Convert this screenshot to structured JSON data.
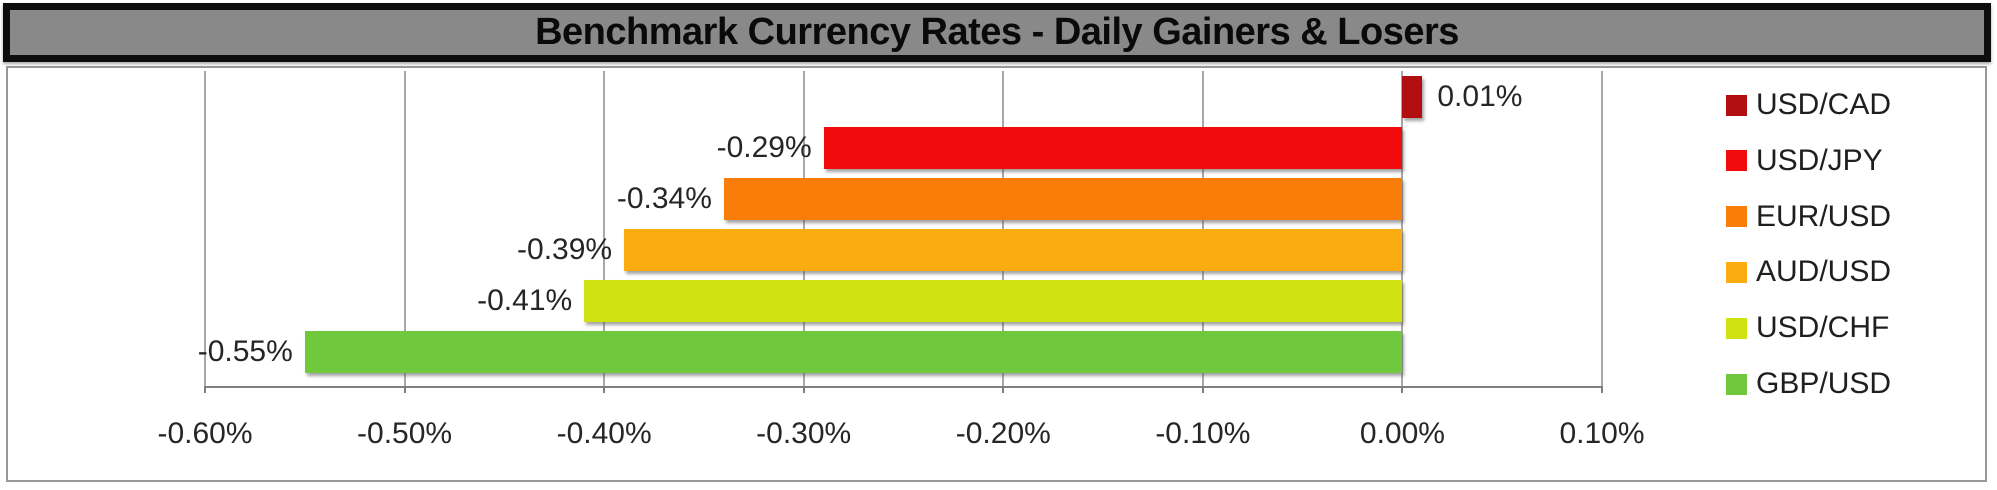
{
  "title": "Benchmark Currency Rates - Daily Gainers & Losers",
  "colors": {
    "title_background": "#898989",
    "title_border": "#0d0d0d",
    "gridline": "#a8a8a8",
    "axis_line": "#7f7f7f",
    "label_text": "#262626"
  },
  "chart_data": {
    "type": "bar",
    "orientation": "horizontal",
    "title": "Benchmark Currency Rates - Daily Gainers & Losers",
    "categories": [
      "USD/CAD",
      "USD/JPY",
      "EUR/USD",
      "AUD/USD",
      "USD/CHF",
      "GBP/USD"
    ],
    "values": [
      0.01,
      -0.29,
      -0.34,
      -0.39,
      -0.41,
      -0.55
    ],
    "value_labels": [
      "0.01%",
      "-0.29%",
      "-0.34%",
      "-0.39%",
      "-0.41%",
      "-0.55%"
    ],
    "bar_colors": [
      "#b00e11",
      "#f10b0c",
      "#f87d09",
      "#fbac10",
      "#d0e212",
      "#70c83d"
    ],
    "xlabel": "",
    "ylabel": "",
    "xlim": [
      -0.6,
      0.1
    ],
    "x_tick_labels": [
      "-0.60%",
      "-0.50%",
      "-0.40%",
      "-0.30%",
      "-0.20%",
      "-0.10%",
      "0.00%",
      "0.10%"
    ],
    "grid": true,
    "legend_position": "right",
    "legend": [
      {
        "label": "USD/CAD",
        "color": "#b00e11"
      },
      {
        "label": "USD/JPY",
        "color": "#f10b0c"
      },
      {
        "label": "EUR/USD",
        "color": "#f87d09"
      },
      {
        "label": "AUD/USD",
        "color": "#fbac10"
      },
      {
        "label": "USD/CHF",
        "color": "#d0e212"
      },
      {
        "label": "GBP/USD",
        "color": "#70c83d"
      }
    ]
  }
}
